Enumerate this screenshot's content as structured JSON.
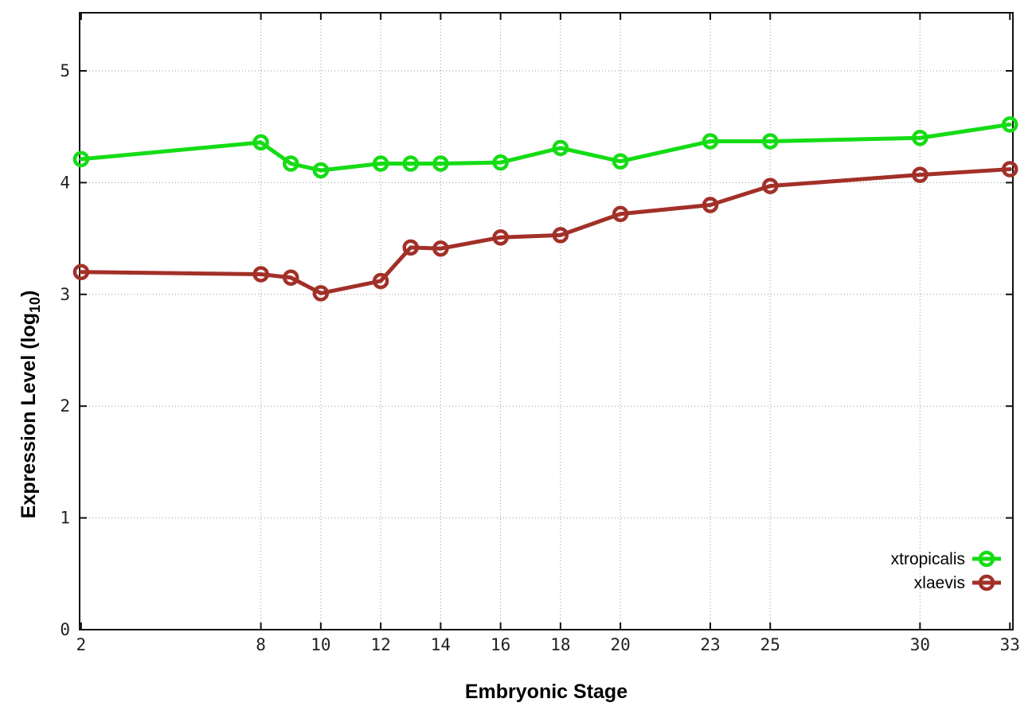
{
  "chart_data": {
    "type": "line",
    "title": "",
    "xlabel": "Embryonic Stage",
    "ylabel_prefix": "Expression Level (log",
    "ylabel_sub": "10",
    "ylabel_suffix": ")",
    "x_ticks": [
      2,
      8,
      10,
      12,
      14,
      16,
      18,
      20,
      23,
      25,
      30,
      33
    ],
    "y_ticks": [
      0,
      1,
      2,
      3,
      4,
      5
    ],
    "xlim": [
      1.95,
      33.1
    ],
    "ylim": [
      0,
      5.52
    ],
    "grid": true,
    "legend_position": "bottom-right",
    "x": [
      2,
      8,
      9,
      10,
      12,
      13,
      14,
      16,
      18,
      20,
      23,
      25,
      30,
      33
    ],
    "series": [
      {
        "name": "xtropicalis",
        "color": "#15dc15",
        "values": [
          4.21,
          4.36,
          4.17,
          4.11,
          4.17,
          4.17,
          4.17,
          4.18,
          4.31,
          4.19,
          4.37,
          4.37,
          4.4,
          4.52
        ]
      },
      {
        "name": "xlaevis",
        "color": "#a23028",
        "values": [
          3.2,
          3.18,
          3.15,
          3.01,
          3.12,
          3.42,
          3.41,
          3.51,
          3.53,
          3.72,
          3.8,
          3.97,
          4.07,
          4.12
        ]
      }
    ]
  },
  "style": {
    "background": "#ffffff",
    "border_color": "#111111",
    "grid_color": "#9a9a9a",
    "tick_color": "#111111"
  }
}
